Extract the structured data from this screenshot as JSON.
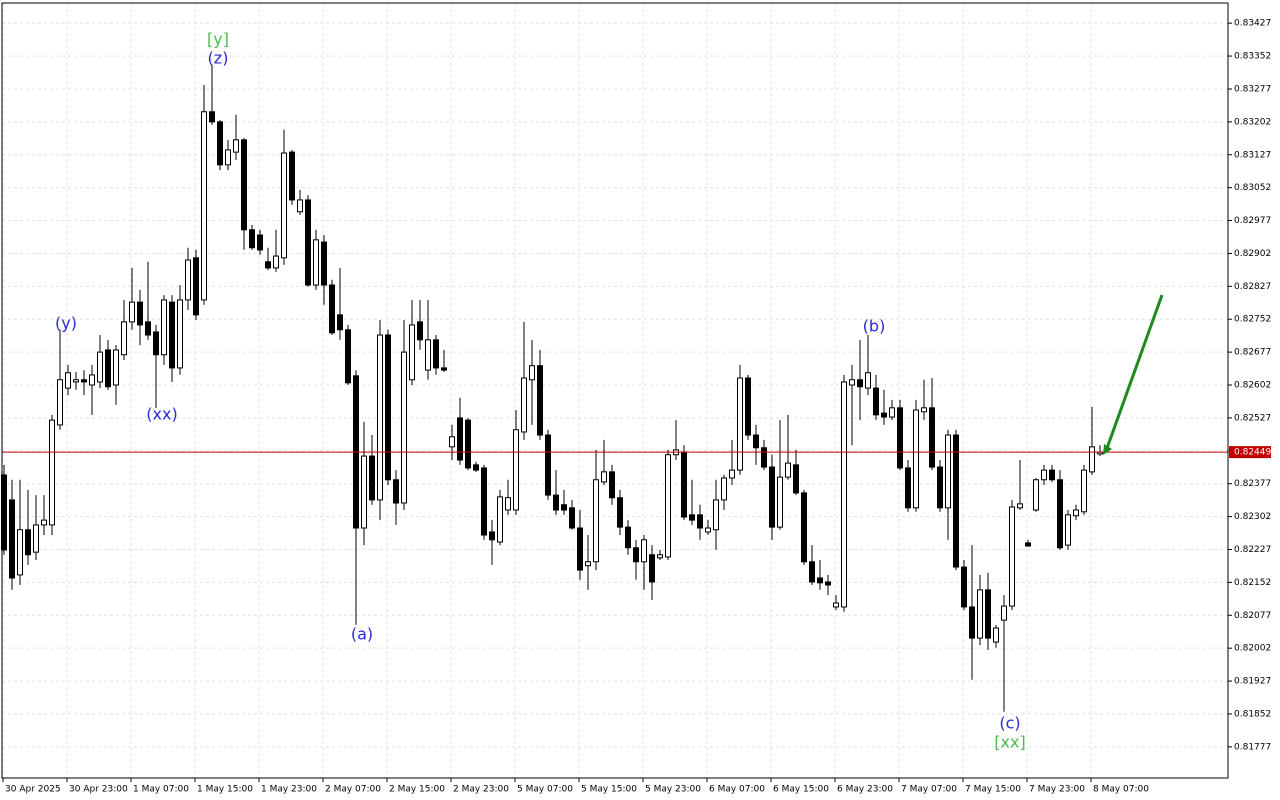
{
  "chart_data": {
    "type": "candlestick",
    "categories": [
      "30 Apr 2025",
      null,
      null,
      null,
      null,
      null,
      null,
      null,
      "30 Apr 23:00",
      null,
      null,
      null,
      null,
      null,
      null,
      null,
      "1 May 07:00",
      null,
      null,
      null,
      null,
      null,
      null,
      null,
      "1 May 15:00",
      null,
      null,
      null,
      null,
      null,
      null,
      null,
      "1 May 23:00",
      null,
      null,
      null,
      null,
      null,
      null,
      null,
      "2 May 07:00",
      null,
      null,
      null,
      null,
      null,
      null,
      null,
      "2 May 15:00",
      null,
      null,
      null,
      null,
      null,
      null,
      null,
      "2 May 23:00",
      null,
      null,
      null,
      null,
      null,
      null,
      null,
      "5 May 07:00",
      null,
      null,
      null,
      null,
      null,
      null,
      null,
      "5 May 15:00",
      null,
      null,
      null,
      null,
      null,
      null,
      null,
      "5 May 23:00",
      null,
      null,
      null,
      null,
      null,
      null,
      null,
      "6 May 07:00",
      null,
      null,
      null,
      null,
      null,
      null,
      null,
      "6 May 15:00",
      null,
      null,
      null,
      null,
      null,
      null,
      null,
      "6 May 23:00",
      null,
      null,
      null,
      null,
      null,
      null,
      null,
      "7 May 07:00",
      null,
      null,
      null,
      null,
      null,
      null,
      null,
      "7 May 15:00",
      null,
      null,
      null,
      null,
      null,
      null,
      null,
      "7 May 23:00",
      null,
      null,
      null,
      null,
      null,
      null,
      null,
      "8 May 07:00",
      null
    ],
    "open": [
      0.82397,
      0.8234,
      0.82169,
      0.82272,
      0.82221,
      0.82283,
      0.82283,
      0.82511,
      0.82595,
      0.82609,
      0.82614,
      0.82602,
      0.82609,
      0.82682,
      0.82602,
      0.82671,
      0.82746,
      0.82791,
      0.82746,
      0.82723,
      0.82671,
      0.82791,
      0.82641,
      0.82796,
      0.82892,
      0.82796,
      0.83225,
      0.83202,
      0.83104,
      0.83133,
      0.83161,
      0.82956,
      0.82944,
      0.82883,
      0.82869,
      0.82892,
      0.83133,
      0.82997,
      0.83024,
      0.8283,
      0.82928,
      0.8283,
      0.82762,
      0.82728,
      0.82623,
      0.82276,
      0.8244,
      0.8234,
      0.82716,
      0.82386,
      0.82333,
      0.82614,
      0.82746,
      0.82636,
      0.82705,
      0.82641,
      0.82461,
      0.82527,
      0.82522,
      0.8242,
      0.82413,
      0.82267,
      0.82244,
      0.82317,
      0.82317,
      0.82495,
      0.82614,
      0.82646,
      0.82488,
      0.82351,
      0.82329,
      0.82322,
      0.82276,
      0.8219,
      0.82199,
      0.82381,
      0.82404,
      0.82345,
      0.82278,
      0.82231,
      0.82199,
      0.82215,
      0.82208,
      0.8221,
      0.82443,
      0.82449,
      0.82306,
      0.82306,
      0.82267,
      0.82272,
      0.8234,
      0.8239,
      0.82408,
      0.82618,
      0.82488,
      0.82459,
      0.82415,
      0.82278,
      0.82392,
      0.8242,
      0.82356,
      0.82199,
      0.82162,
      0.82153,
      0.82096,
      0.82096,
      0.82602,
      0.82614,
      0.82595,
      0.82595,
      0.82538,
      0.82529,
      0.8255,
      0.82413,
      0.82322,
      0.82541,
      0.8255,
      0.82415,
      0.82322,
      0.82488,
      0.82187,
      0.82096,
      0.82025,
      0.82135,
      0.82016,
      0.82066,
      0.82098,
      0.82322,
      0.82242,
      0.82317,
      0.82386,
      0.82408,
      0.82386,
      0.82237,
      0.82304,
      0.82313,
      0.82404,
      0.82445
    ],
    "high": [
      0.8242,
      0.82386,
      0.82386,
      0.82363,
      0.82351,
      0.82351,
      0.82534,
      0.82728,
      0.82648,
      0.82632,
      0.82636,
      0.82648,
      0.82716,
      0.82705,
      0.82693,
      0.82796,
      0.82869,
      0.82819,
      0.82883,
      0.82739,
      0.82807,
      0.82807,
      0.8283,
      0.82915,
      0.8291,
      0.83286,
      0.83332,
      0.83206,
      0.83161,
      0.83218,
      0.83165,
      0.82967,
      0.82956,
      0.82915,
      0.82956,
      0.83184,
      0.83138,
      0.83047,
      0.83035,
      0.82956,
      0.82944,
      0.82842,
      0.82869,
      0.82739,
      0.82636,
      0.82518,
      0.82488,
      0.8275,
      0.82728,
      0.82408,
      0.8275,
      0.82796,
      0.82796,
      0.82796,
      0.82716,
      0.82682,
      0.82511,
      0.82573,
      0.82527,
      0.82427,
      0.8242,
      0.82294,
      0.82363,
      0.82386,
      0.82545,
      0.82746,
      0.82705,
      0.82682,
      0.825,
      0.82408,
      0.82363,
      0.8234,
      0.82317,
      0.8226,
      0.82454,
      0.82477,
      0.8242,
      0.82363,
      0.82294,
      0.82249,
      0.8226,
      0.82237,
      0.82226,
      0.82454,
      0.82522,
      0.82465,
      0.82386,
      0.82329,
      0.82294,
      0.82386,
      0.82397,
      0.82477,
      0.82648,
      0.82625,
      0.82511,
      0.82477,
      0.82443,
      0.82522,
      0.82534,
      0.82454,
      0.82363,
      0.82237,
      0.82203,
      0.82169,
      0.82123,
      0.82625,
      0.82648,
      0.82705,
      0.82716,
      0.82625,
      0.82591,
      0.82568,
      0.82568,
      0.82431,
      0.82568,
      0.82614,
      0.82618,
      0.82431,
      0.825,
      0.825,
      0.82203,
      0.82237,
      0.82169,
      0.82174,
      0.82055,
      0.82123,
      0.8234,
      0.82431,
      0.82249,
      0.8239,
      0.8242,
      0.8242,
      0.82408,
      0.82317,
      0.82329,
      0.8242,
      0.82552,
      0.82465
    ],
    "low": [
      0.82215,
      0.82135,
      0.82146,
      0.82192,
      0.82203,
      0.8226,
      0.8226,
      0.825,
      0.82579,
      0.82591,
      0.82579,
      0.82534,
      0.82595,
      0.82591,
      0.82557,
      0.82659,
      0.82728,
      0.82693,
      0.82705,
      0.8255,
      0.82648,
      0.82609,
      0.82625,
      0.82773,
      0.8275,
      0.82785,
      0.83195,
      0.83092,
      0.83092,
      0.83115,
      0.8291,
      0.8291,
      0.82899,
      0.82864,
      0.8286,
      0.82876,
      0.83013,
      0.8299,
      0.82826,
      0.82819,
      0.82785,
      0.82716,
      0.82705,
      0.82602,
      0.82055,
      0.82237,
      0.82329,
      0.82294,
      0.82374,
      0.82283,
      0.82317,
      0.82602,
      0.82682,
      0.82614,
      0.82625,
      0.82632,
      0.82431,
      0.8242,
      0.82408,
      0.82404,
      0.82249,
      0.82192,
      0.82237,
      0.82306,
      0.82306,
      0.82477,
      0.82511,
      0.82477,
      0.8234,
      0.82306,
      0.82306,
      0.82272,
      0.82158,
      0.82135,
      0.8218,
      0.82374,
      0.82329,
      0.8226,
      0.82215,
      0.82158,
      0.82135,
      0.82112,
      0.82203,
      0.82203,
      0.82431,
      0.82294,
      0.82283,
      0.82249,
      0.8226,
      0.82226,
      0.82317,
      0.82374,
      0.82397,
      0.82477,
      0.8242,
      0.82408,
      0.82249,
      0.82272,
      0.82386,
      0.82351,
      0.82192,
      0.82146,
      0.82135,
      0.82123,
      0.82089,
      0.82085,
      0.82465,
      0.82522,
      0.82579,
      0.82522,
      0.82511,
      0.82522,
      0.82408,
      0.82313,
      0.82313,
      0.82522,
      0.82408,
      0.82313,
      0.82249,
      0.8218,
      0.82089,
      0.8193,
      0.82009,
      0.81998,
      0.82003,
      0.81857,
      0.82089,
      0.82317,
      0.82233,
      0.82313,
      0.82374,
      0.82381,
      0.82226,
      0.82226,
      0.82294,
      0.82306,
      0.82397,
      0.8244
    ],
    "close": [
      0.82226,
      0.82162,
      0.82272,
      0.82215,
      0.82283,
      0.82294,
      0.82522,
      0.82614,
      0.8263,
      0.82614,
      0.82609,
      0.82625,
      0.82677,
      0.82598,
      0.82682,
      0.82746,
      0.82791,
      0.82739,
      0.82716,
      0.82671,
      0.82796,
      0.82641,
      0.82796,
      0.82887,
      0.82762,
      0.83225,
      0.83202,
      0.83104,
      0.83138,
      0.83161,
      0.82956,
      0.82915,
      0.8291,
      0.82869,
      0.82896,
      0.83131,
      0.83024,
      0.83024,
      0.8283,
      0.82933,
      0.8283,
      0.82721,
      0.82728,
      0.82607,
      0.82276,
      0.8244,
      0.8234,
      0.82716,
      0.82386,
      0.82333,
      0.82677,
      0.82739,
      0.82705,
      0.82705,
      0.82641,
      0.82636,
      0.82484,
      0.82431,
      0.82413,
      0.82408,
      0.8226,
      0.82249,
      0.82347,
      0.82345,
      0.825,
      0.82618,
      0.82646,
      0.82488,
      0.82351,
      0.82317,
      0.82317,
      0.82276,
      0.8218,
      0.82199,
      0.82386,
      0.82404,
      0.82345,
      0.82278,
      0.82231,
      0.82199,
      0.82249,
      0.82153,
      0.82215,
      0.82443,
      0.82454,
      0.82301,
      0.82294,
      0.82276,
      0.82276,
      0.8234,
      0.8239,
      0.82408,
      0.82618,
      0.82488,
      0.82459,
      0.82415,
      0.82278,
      0.82392,
      0.82424,
      0.82356,
      0.82199,
      0.82153,
      0.82151,
      0.82146,
      0.82105,
      0.82609,
      0.82614,
      0.82598,
      0.8263,
      0.82534,
      0.82529,
      0.8255,
      0.82413,
      0.82322,
      0.82545,
      0.8255,
      0.82415,
      0.82322,
      0.82488,
      0.82187,
      0.82096,
      0.82025,
      0.82135,
      0.82025,
      0.82048,
      0.82098,
      0.82324,
      0.82331,
      0.82235,
      0.82386,
      0.82408,
      0.82386,
      0.82231,
      0.82306,
      0.82317,
      0.82408,
      0.82461,
      0.82449
    ],
    "ylim": [
      0.81706,
      0.83473
    ],
    "yticks": [
      0.83427,
      0.83352,
      0.83277,
      0.83202,
      0.83127,
      0.83052,
      0.82977,
      0.82902,
      0.82827,
      0.82752,
      0.82677,
      0.82602,
      0.82527,
      0.82452,
      0.82377,
      0.82302,
      0.82227,
      0.82152,
      0.82077,
      0.82002,
      0.81927,
      0.81852,
      0.81777
    ],
    "grid": true,
    "current_price": 0.82449,
    "current_price_color": "#c00000",
    "bull_color": "#ffffff",
    "bear_color": "#000000",
    "annotations": [
      {
        "text": "[y]",
        "color": "#4cbb4c"
      },
      {
        "text": "(z)",
        "color": "#2a2ad4"
      },
      {
        "text": "(y)",
        "color": "#2a2ad4"
      },
      {
        "text": "(xx)",
        "color": "#2a2ad4"
      },
      {
        "text": "(a)",
        "color": "#2a2ad4"
      },
      {
        "text": "(b)",
        "color": "#2a2ad4"
      },
      {
        "text": "(c)",
        "color": "#2a2ad4"
      },
      {
        "text": "[xx]",
        "color": "#4cbb4c"
      }
    ]
  }
}
